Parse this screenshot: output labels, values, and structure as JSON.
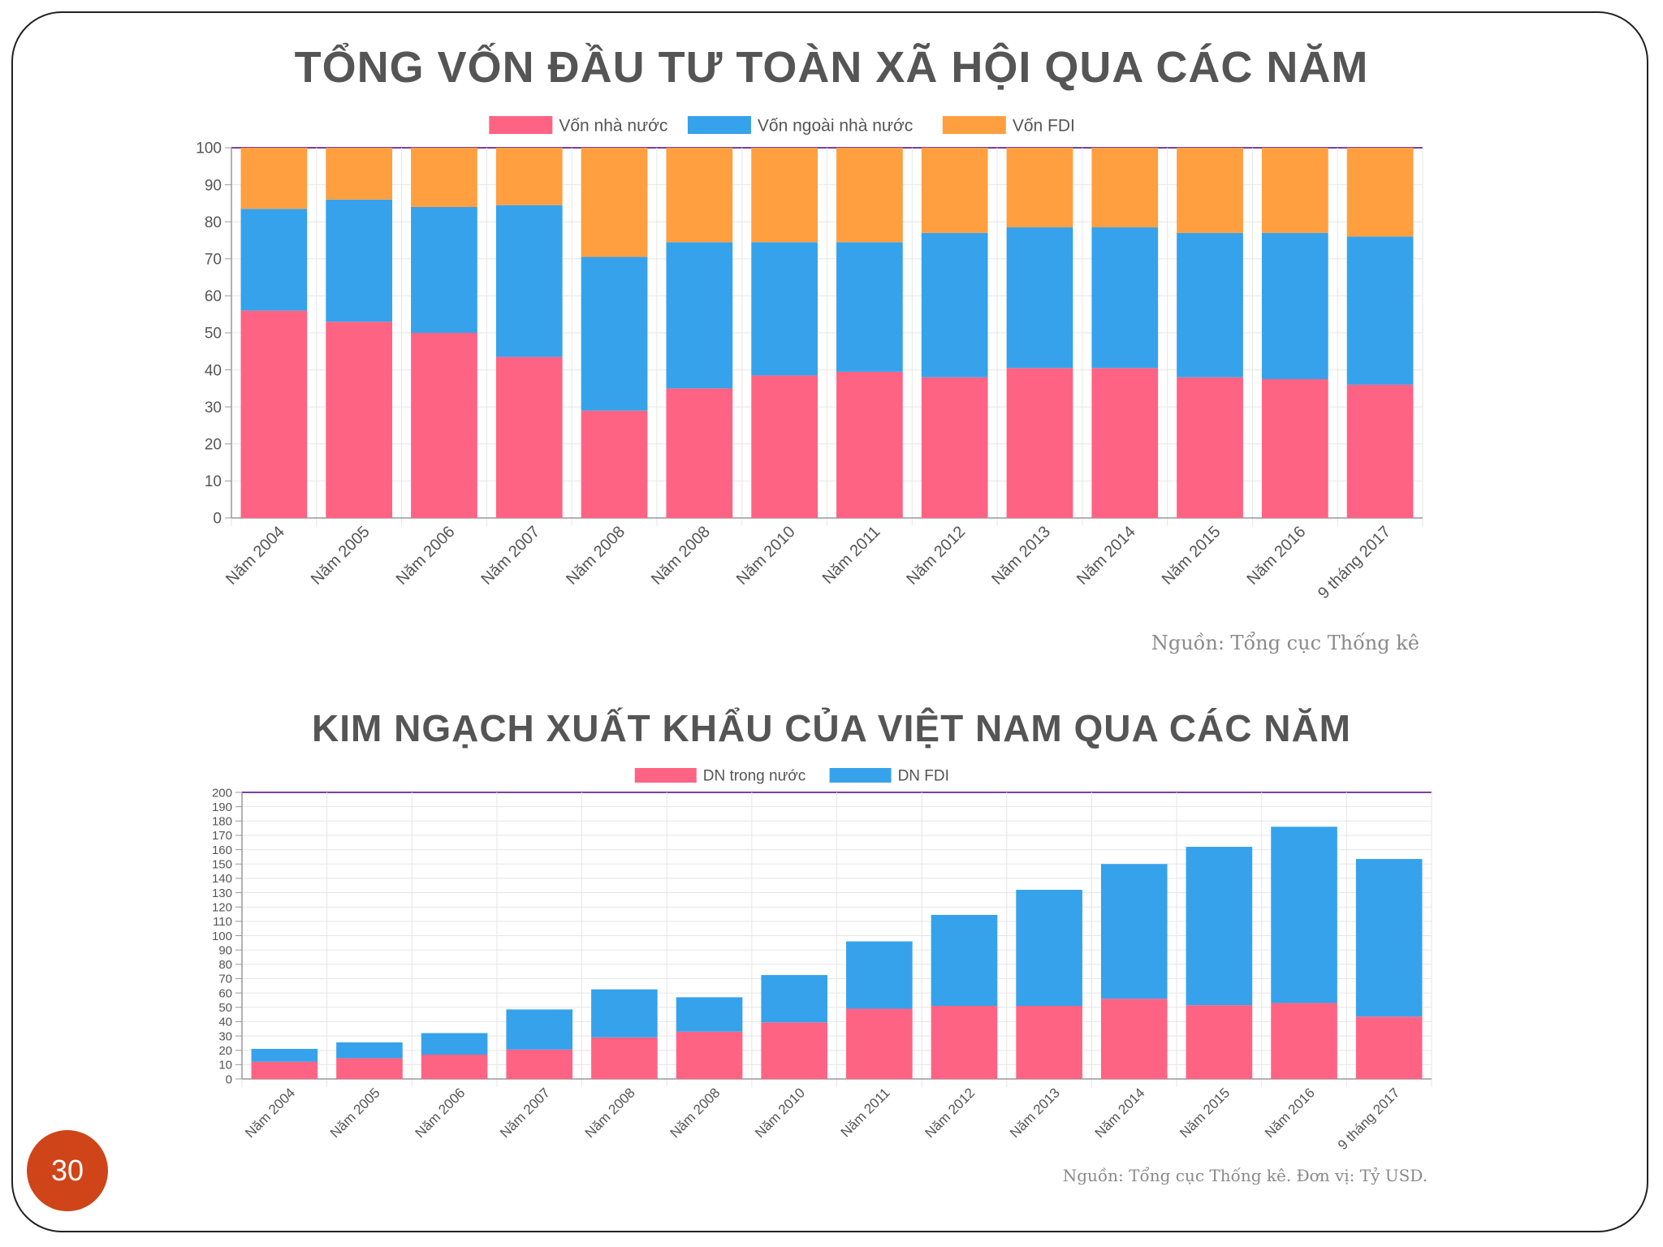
{
  "slide": {
    "page_number": "30"
  },
  "chart_data": [
    {
      "type": "bar",
      "stacked": true,
      "title": "TỔNG  VỐN ĐẦU TƯ TOÀN XÃ HỘI QUA CÁC NĂM",
      "source": "Nguồn: Tổng cục Thống kê",
      "categories": [
        "Năm 2004",
        "Năm 2005",
        "Năm 2006",
        "Năm 2007",
        "Năm 2008",
        "Năm 2008",
        "Năm 2010",
        "Năm 2011",
        "Năm 2012",
        "Năm 2013",
        "Năm 2014",
        "Năm 2015",
        "Năm 2016",
        "9 tháng 2017"
      ],
      "series": [
        {
          "name": "Vốn nhà nước",
          "color": "#ff6384",
          "values": [
            56,
            53,
            50,
            43.5,
            29,
            35,
            38.5,
            39.5,
            38,
            40.5,
            40.5,
            38,
            37.5,
            36
          ]
        },
        {
          "name": "Vốn ngoài nhà nước",
          "color": "#36a2eb",
          "values": [
            27.5,
            33,
            34,
            41,
            41.5,
            39.5,
            36,
            35,
            39,
            38,
            38,
            39,
            39.5,
            40
          ]
        },
        {
          "name": "Vốn FDI",
          "color": "#ff9f40",
          "values": [
            16.5,
            14,
            16,
            15.5,
            29.5,
            25.5,
            25.5,
            25.5,
            23,
            21.5,
            21.5,
            23,
            23,
            24
          ]
        }
      ],
      "ylim": [
        0,
        100
      ],
      "yticks": [
        "0",
        "10",
        "20",
        "30",
        "40",
        "50",
        "60",
        "70",
        "80",
        "90",
        "100"
      ],
      "legend": "top",
      "grid": true
    },
    {
      "type": "bar",
      "stacked": true,
      "title": "KIM NGẠCH XUẤT KHẨU CỦA VIỆT NAM QUA CÁC NĂM",
      "source": "Nguồn: Tổng cục Thống kê. Đơn vị: Tỷ USD.",
      "categories": [
        "Năm 2004",
        "Năm 2005",
        "Năm 2006",
        "Năm 2007",
        "Năm 2008",
        "Năm 2008",
        "Năm 2010",
        "Năm 2011",
        "Năm 2012",
        "Năm 2013",
        "Năm 2014",
        "Năm 2015",
        "Năm 2016",
        "9 tháng 2017"
      ],
      "series": [
        {
          "name": "DN trong nước",
          "color": "#ff6384",
          "values": [
            12,
            14.5,
            17,
            20.5,
            29,
            33,
            39.5,
            49,
            51,
            51,
            56,
            51.5,
            53,
            43.5
          ]
        },
        {
          "name": "DN FDI",
          "color": "#36a2eb",
          "values": [
            9,
            11,
            15,
            28,
            33.5,
            24,
            33,
            47,
            63.5,
            81,
            94,
            110.5,
            123,
            110
          ]
        }
      ],
      "ylim": [
        0,
        200
      ],
      "yticks": [
        "0",
        "10",
        "20",
        "30",
        "40",
        "50",
        "60",
        "70",
        "80",
        "90",
        "100",
        "110",
        "120",
        "130",
        "140",
        "150",
        "160",
        "170",
        "180",
        "190",
        "200"
      ],
      "legend": "top",
      "grid": true
    }
  ]
}
